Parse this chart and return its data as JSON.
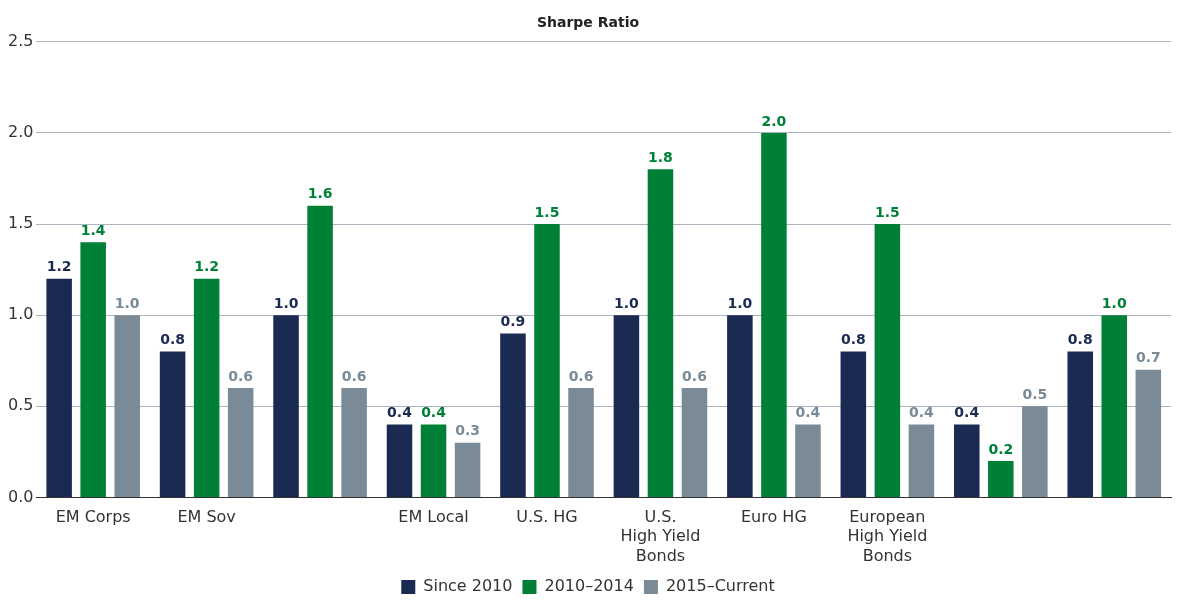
{
  "chart_data": {
    "type": "bar",
    "title": "Sharpe Ratio",
    "categories": [
      "EM Corps",
      "EM Sov",
      null,
      "EM Local",
      "U.S. HG",
      "U.S.\nHigh Yield\nBonds",
      "Euro HG",
      "European\nHigh Yield\nBonds",
      null,
      null
    ],
    "series": [
      {
        "name": "Since 2010",
        "color": "#1b2a52",
        "values": [
          1.2,
          0.8,
          1.0,
          0.4,
          0.9,
          1.0,
          1.0,
          0.8,
          0.4,
          0.8
        ],
        "value_labels": [
          "1.2",
          "0.8",
          "1.0",
          "0.4",
          "0.9",
          "1.0",
          "1.0",
          "0.8",
          "0.4",
          "0.8"
        ]
      },
      {
        "name": "2010–2014",
        "color": "#008037",
        "values": [
          1.4,
          1.2,
          1.6,
          0.4,
          1.5,
          1.8,
          2.0,
          1.5,
          0.2,
          1.0
        ],
        "value_labels": [
          "1.4",
          "1.2",
          "1.6",
          "0.4",
          "1.5",
          "1.8",
          "2.0",
          "1.5",
          "0.2",
          "1.0"
        ]
      },
      {
        "name": "2015–Current",
        "color": "#7a8a96",
        "values": [
          1.0,
          0.6,
          0.6,
          0.3,
          0.6,
          0.6,
          0.4,
          0.4,
          0.5,
          0.7
        ],
        "value_labels": [
          "1.0",
          "0.6",
          "0.6",
          "0.3",
          "0.6",
          "0.6",
          "0.4",
          "0.4",
          "0.5",
          "0.7"
        ]
      }
    ],
    "ylim": [
      0,
      2.5
    ],
    "yticks": [
      {
        "value": 0,
        "label": "0.0"
      },
      {
        "value": 0.5,
        "label": "0.5"
      },
      {
        "value": 1,
        "label": "1.0"
      },
      {
        "value": 1.5,
        "label": "1.5"
      },
      {
        "value": 2,
        "label": "2.0"
      },
      {
        "value": 2.5,
        "label": "2.5"
      }
    ],
    "grid": "y",
    "legend": "bottom"
  }
}
